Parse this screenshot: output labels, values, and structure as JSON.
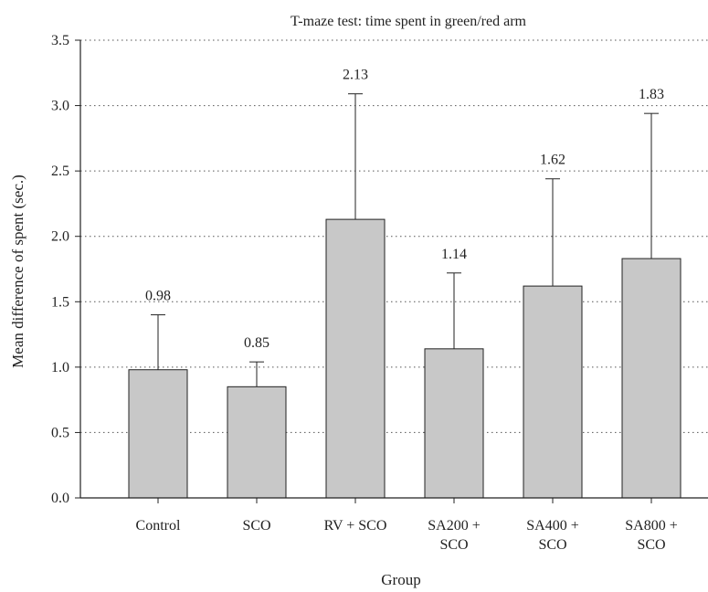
{
  "chart_data": {
    "type": "bar",
    "title": "T-maze test: time spent in green/red arm",
    "xlabel": "Group",
    "ylabel": "Mean difference of spent (sec.)",
    "ylim": [
      0,
      3.5
    ],
    "y_ticks": [
      "0.0",
      "0.5",
      "1.0",
      "1.5",
      "2.0",
      "2.5",
      "3.0",
      "3.5"
    ],
    "grid": "horizontal dotted",
    "categories": [
      [
        "Control"
      ],
      [
        "SCO"
      ],
      [
        "RV + SCO"
      ],
      [
        "SA200 +",
        "SCO"
      ],
      [
        "SA400 +",
        "SCO"
      ],
      [
        "SA800 +",
        "SCO"
      ]
    ],
    "values": [
      0.98,
      0.85,
      2.13,
      1.14,
      1.62,
      1.83
    ],
    "value_labels": [
      "0.98",
      "0.85",
      "2.13",
      "1.14",
      "1.62",
      "1.83"
    ],
    "error_upper": [
      1.4,
      1.04,
      3.09,
      1.72,
      2.44,
      2.94
    ],
    "bar_color": "#c8c8c8",
    "edge_color": "#222222"
  }
}
